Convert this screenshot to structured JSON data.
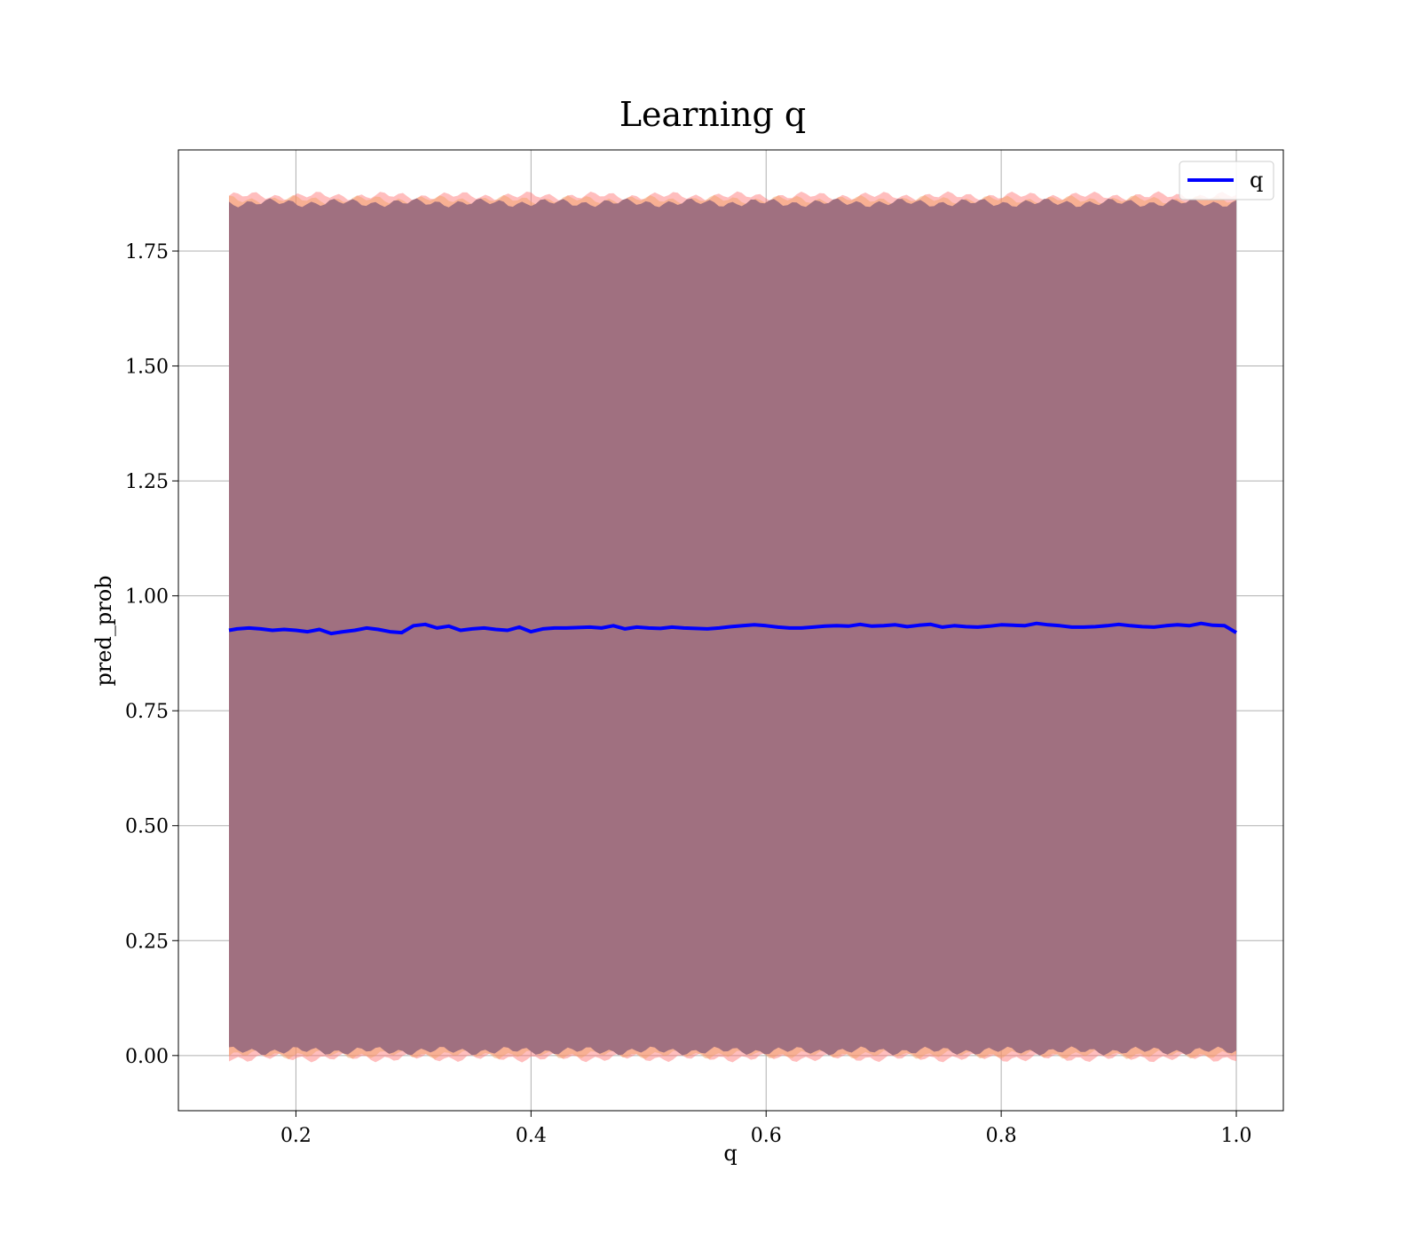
{
  "chart_data": {
    "type": "line",
    "title": "Learning q",
    "xlabel": "q",
    "ylabel": "pred_prob",
    "xlim": [
      0.1,
      1.04
    ],
    "ylim": [
      -0.12,
      1.97
    ],
    "x_ticks": [
      "0.2",
      "0.4",
      "0.6",
      "0.8",
      "1.0"
    ],
    "y_ticks": [
      "0.00",
      "0.25",
      "0.50",
      "0.75",
      "1.00",
      "1.25",
      "1.50",
      "1.75"
    ],
    "grid": true,
    "legend": {
      "position": "upper-right",
      "entries": [
        "q"
      ]
    },
    "x_range": [
      0.143,
      1.0
    ],
    "series": [
      {
        "name": "q",
        "color": "#0000ff",
        "x": [
          0.143,
          0.15,
          0.16,
          0.17,
          0.18,
          0.19,
          0.2,
          0.21,
          0.22,
          0.23,
          0.24,
          0.25,
          0.26,
          0.27,
          0.28,
          0.29,
          0.3,
          0.31,
          0.32,
          0.33,
          0.34,
          0.35,
          0.36,
          0.37,
          0.38,
          0.39,
          0.4,
          0.41,
          0.42,
          0.43,
          0.44,
          0.45,
          0.46,
          0.47,
          0.48,
          0.49,
          0.5,
          0.51,
          0.52,
          0.53,
          0.54,
          0.55,
          0.56,
          0.57,
          0.58,
          0.59,
          0.6,
          0.61,
          0.62,
          0.63,
          0.64,
          0.65,
          0.66,
          0.67,
          0.68,
          0.69,
          0.7,
          0.71,
          0.72,
          0.73,
          0.74,
          0.75,
          0.76,
          0.77,
          0.78,
          0.79,
          0.8,
          0.81,
          0.82,
          0.83,
          0.84,
          0.85,
          0.86,
          0.87,
          0.88,
          0.89,
          0.9,
          0.91,
          0.92,
          0.93,
          0.94,
          0.95,
          0.96,
          0.97,
          0.98,
          0.99,
          1.0
        ],
        "y": [
          0.925,
          0.928,
          0.93,
          0.928,
          0.925,
          0.927,
          0.925,
          0.922,
          0.927,
          0.918,
          0.922,
          0.925,
          0.93,
          0.927,
          0.922,
          0.92,
          0.935,
          0.938,
          0.93,
          0.934,
          0.925,
          0.928,
          0.93,
          0.927,
          0.925,
          0.932,
          0.922,
          0.928,
          0.93,
          0.93,
          0.931,
          0.932,
          0.93,
          0.935,
          0.928,
          0.932,
          0.93,
          0.929,
          0.932,
          0.93,
          0.929,
          0.928,
          0.93,
          0.933,
          0.935,
          0.937,
          0.935,
          0.932,
          0.93,
          0.93,
          0.932,
          0.934,
          0.935,
          0.934,
          0.938,
          0.934,
          0.935,
          0.937,
          0.933,
          0.936,
          0.938,
          0.932,
          0.935,
          0.933,
          0.932,
          0.934,
          0.937,
          0.936,
          0.935,
          0.94,
          0.937,
          0.935,
          0.932,
          0.932,
          0.933,
          0.935,
          0.938,
          0.935,
          0.933,
          0.932,
          0.935,
          0.937,
          0.935,
          0.94,
          0.936,
          0.935,
          0.92
        ]
      }
    ],
    "bands": [
      {
        "color": "#ff6e6e",
        "upper": 1.87,
        "lower": -0.005,
        "opacity": 0.45
      },
      {
        "color": "#f0a060",
        "upper": 1.862,
        "lower": 0.002,
        "opacity": 0.45
      },
      {
        "color": "#a07080",
        "upper": 1.855,
        "lower": 0.01,
        "opacity": 1.0
      }
    ]
  }
}
